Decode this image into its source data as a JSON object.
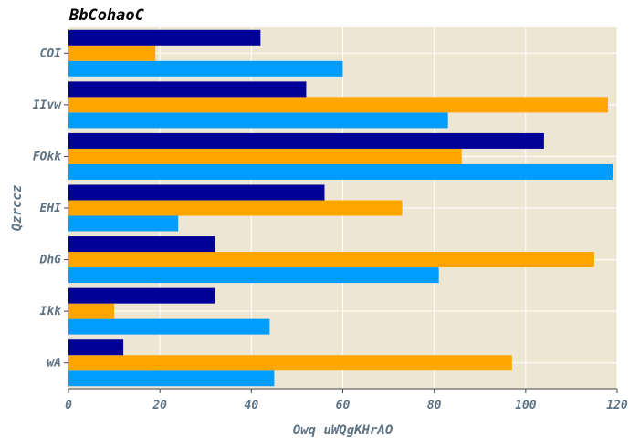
{
  "chart_data": {
    "type": "bar",
    "orientation": "horizontal",
    "title": "BbCohaoC",
    "xlabel": "Owq uWQgKHrAO",
    "ylabel": "Qzrccz",
    "categories": [
      "wA",
      "Ikk",
      "DhG",
      "EHI",
      "FOkk",
      "IIvw",
      "COI"
    ],
    "xlim": [
      0,
      120
    ],
    "xticks": [
      0,
      20,
      40,
      60,
      80,
      100,
      120
    ],
    "grid": true,
    "legend": "none",
    "background_color": "#ede6d3",
    "series": [
      {
        "color": "#009dff",
        "values": [
          45,
          44,
          81,
          24,
          119,
          83,
          60
        ]
      },
      {
        "color": "#ffa500",
        "values": [
          97,
          10,
          115,
          73,
          86,
          118,
          19
        ]
      },
      {
        "color": "#000099",
        "values": [
          12,
          32,
          32,
          56,
          104,
          52,
          42
        ]
      }
    ]
  }
}
